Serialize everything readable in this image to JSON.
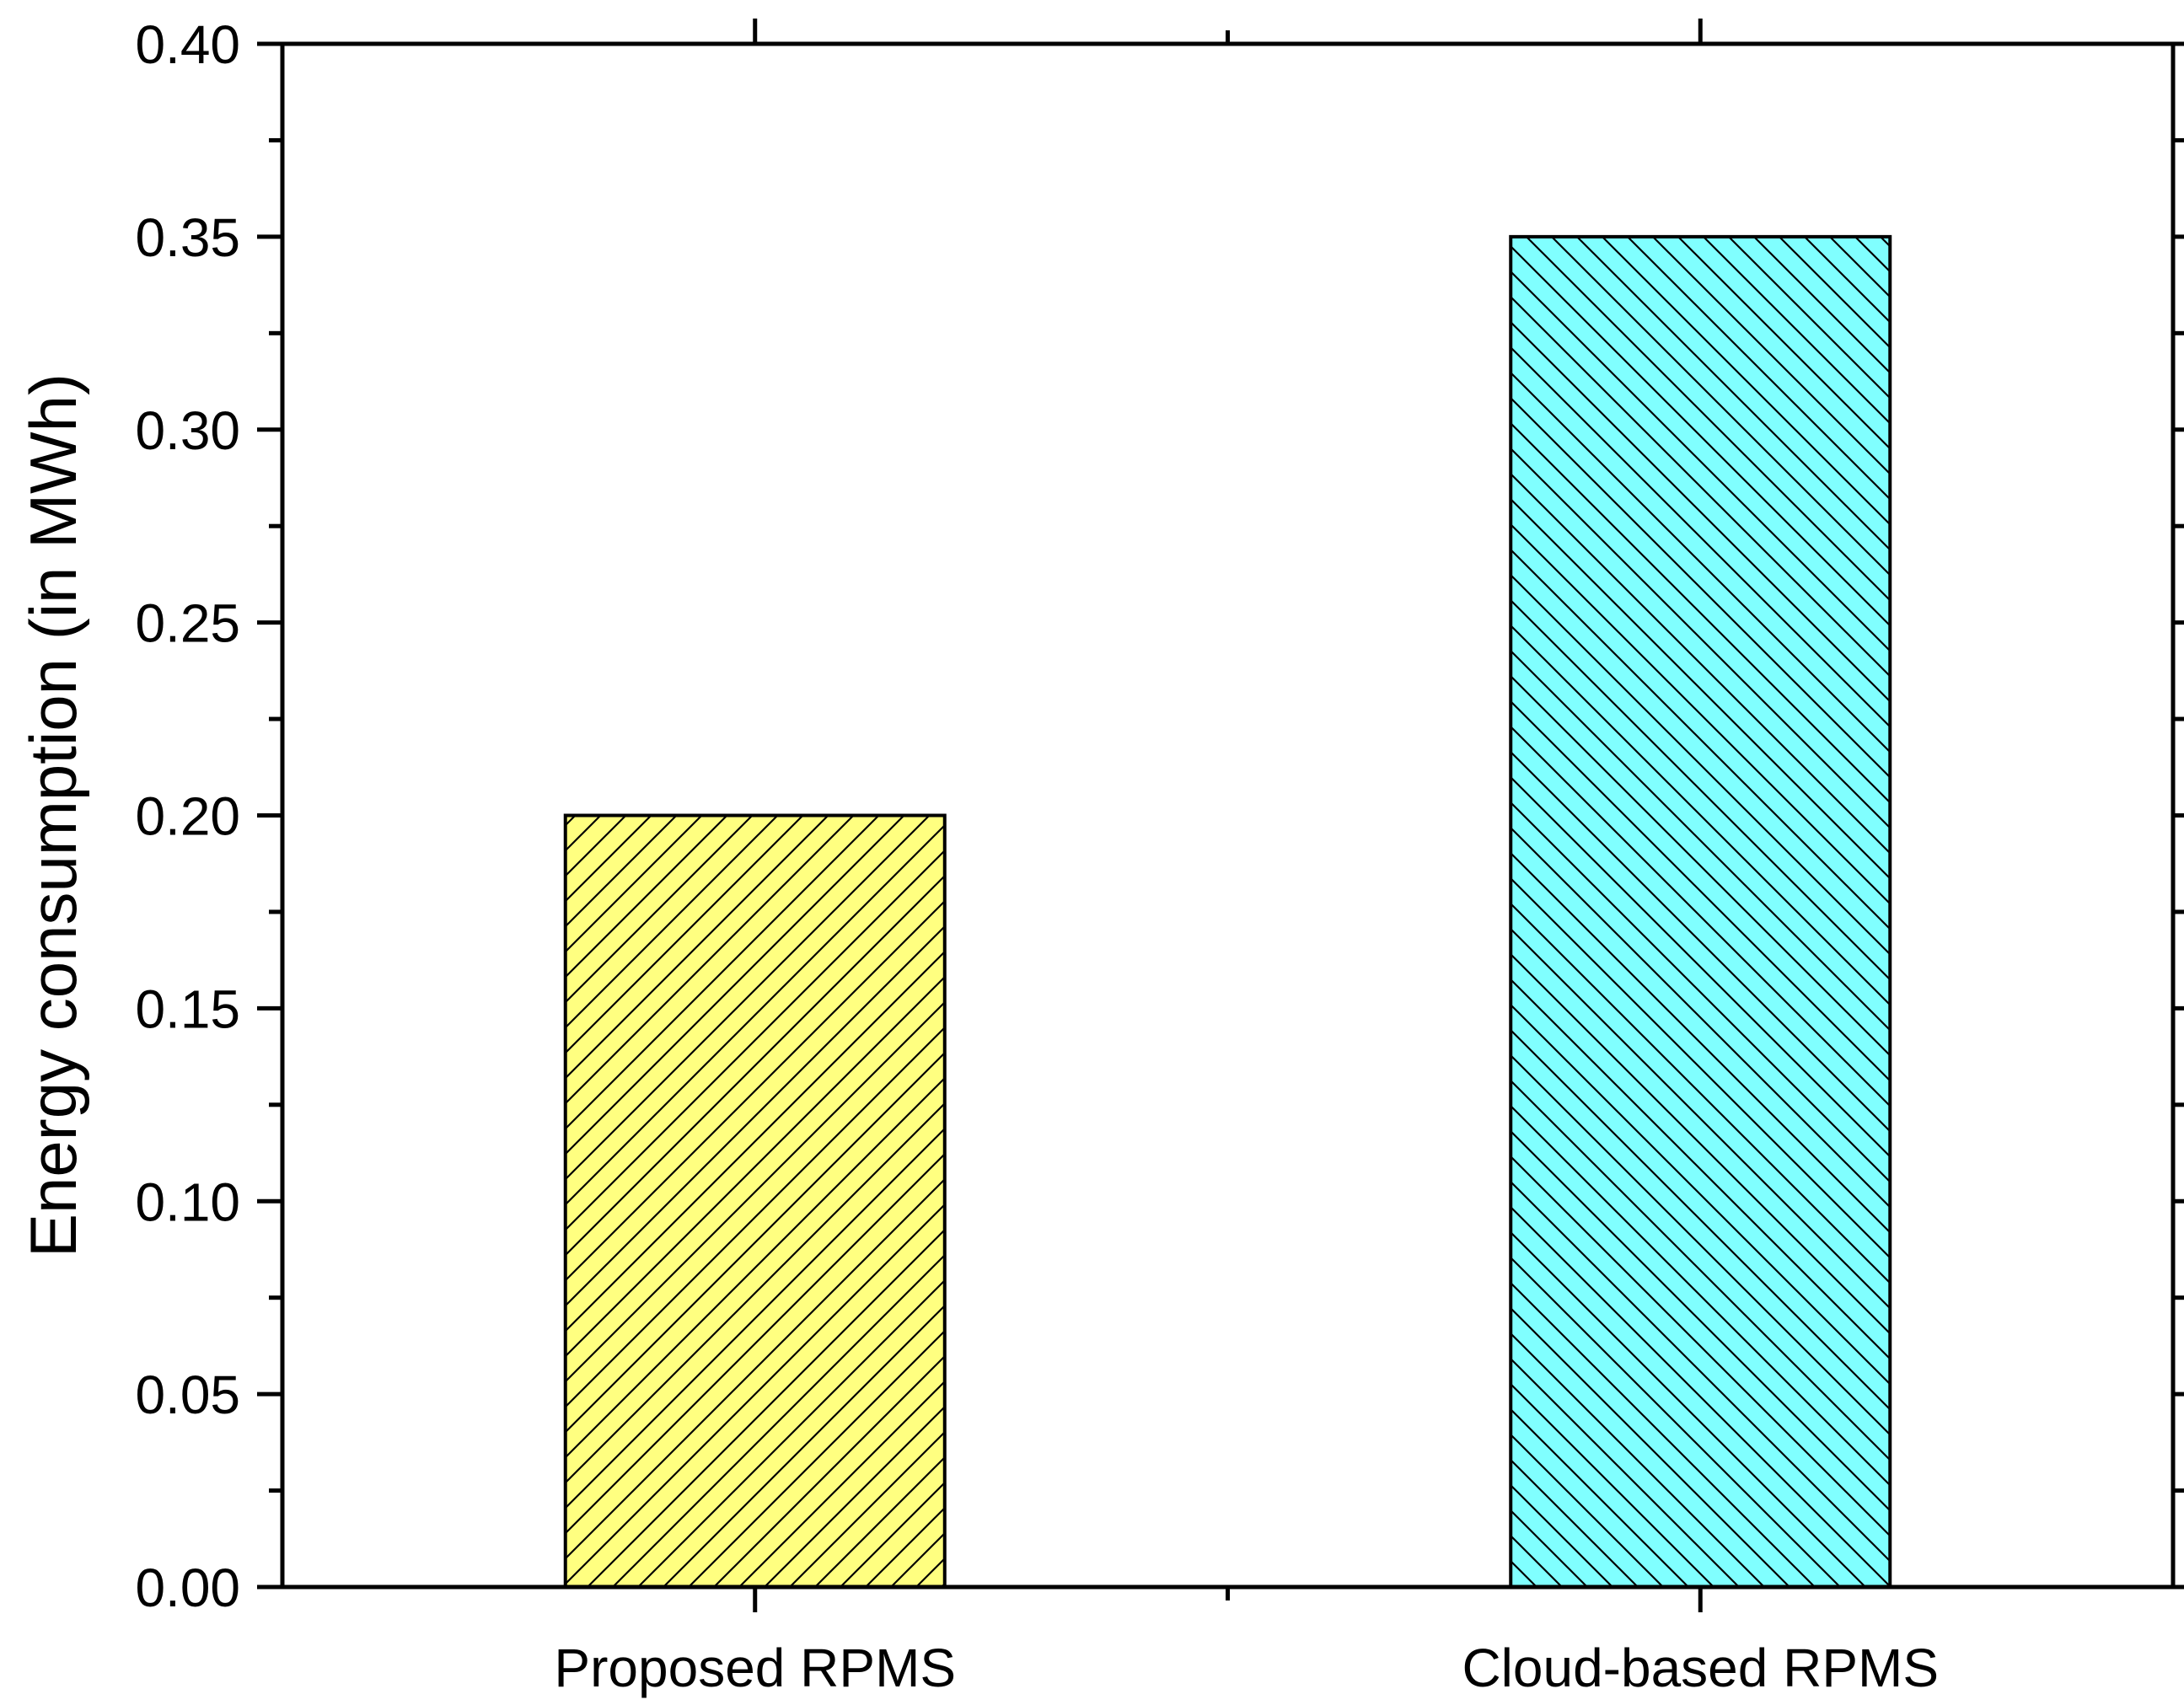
{
  "chart_data": {
    "type": "bar",
    "title": "",
    "xlabel": "",
    "ylabel": "Energy consumption (in MWh)",
    "categories": [
      "Proposed RPMS",
      "Cloud-based RPMS"
    ],
    "values": [
      0.2,
      0.35
    ],
    "ylim": [
      0.0,
      0.4
    ],
    "yticks": [
      "0.00",
      "0.05",
      "0.10",
      "0.15",
      "0.20",
      "0.25",
      "0.30",
      "0.35",
      "0.40"
    ],
    "grid": false,
    "legend": "none",
    "bar_colors": [
      "#ffff80",
      "#80ffff"
    ],
    "bar_hatch": [
      "forward-diagonal",
      "backward-diagonal"
    ],
    "axis_color": "#000000"
  }
}
